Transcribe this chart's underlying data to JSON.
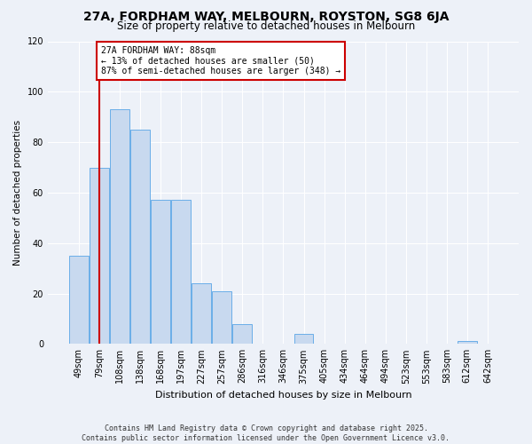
{
  "title": "27A, FORDHAM WAY, MELBOURN, ROYSTON, SG8 6JA",
  "subtitle": "Size of property relative to detached houses in Melbourn",
  "xlabel": "Distribution of detached houses by size in Melbourn",
  "ylabel": "Number of detached properties",
  "categories": [
    "49sqm",
    "79sqm",
    "108sqm",
    "138sqm",
    "168sqm",
    "197sqm",
    "227sqm",
    "257sqm",
    "286sqm",
    "316sqm",
    "346sqm",
    "375sqm",
    "405sqm",
    "434sqm",
    "464sqm",
    "494sqm",
    "523sqm",
    "553sqm",
    "583sqm",
    "612sqm",
    "642sqm"
  ],
  "values": [
    35,
    70,
    93,
    85,
    57,
    57,
    24,
    21,
    8,
    0,
    0,
    4,
    0,
    0,
    0,
    0,
    0,
    0,
    0,
    1,
    0
  ],
  "bar_color": "#c8d9ef",
  "bar_edge_color": "#6aaee8",
  "property_line_x": 1.0,
  "annotation_title": "27A FORDHAM WAY: 88sqm",
  "annotation_line1": "← 13% of detached houses are smaller (50)",
  "annotation_line2": "87% of semi-detached houses are larger (348) →",
  "annotation_box_color": "#ffffff",
  "annotation_border_color": "#cc0000",
  "vline_color": "#cc0000",
  "ylim": [
    0,
    120
  ],
  "yticks": [
    0,
    20,
    40,
    60,
    80,
    100,
    120
  ],
  "background_color": "#edf1f8",
  "grid_color": "#ffffff",
  "footer_line1": "Contains HM Land Registry data © Crown copyright and database right 2025.",
  "footer_line2": "Contains public sector information licensed under the Open Government Licence v3.0."
}
